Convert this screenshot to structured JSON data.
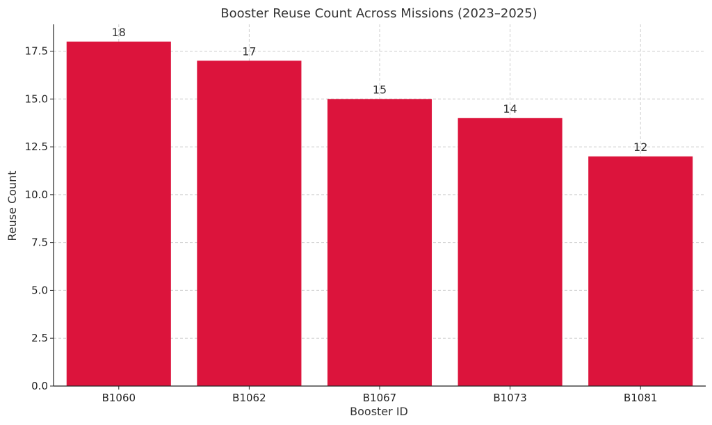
{
  "chart_data": {
    "type": "bar",
    "title": "Booster Reuse Count Across Missions (2023–2025)",
    "xlabel": "Booster ID",
    "ylabel": "Reuse Count",
    "categories": [
      "B1060",
      "B1062",
      "B1067",
      "B1073",
      "B1081"
    ],
    "values": [
      18,
      17,
      15,
      14,
      12
    ],
    "value_labels": [
      "18",
      "17",
      "15",
      "14",
      "12"
    ],
    "ylim": [
      0,
      18.9
    ],
    "yticks": [
      0,
      2.5,
      5,
      7.5,
      10,
      12.5,
      15,
      17.5
    ],
    "ytick_labels": [
      "0.0",
      "2.5",
      "5.0",
      "7.5",
      "10.0",
      "12.5",
      "15.0",
      "17.5"
    ],
    "grid": true,
    "bar_color": "#dc143c"
  }
}
